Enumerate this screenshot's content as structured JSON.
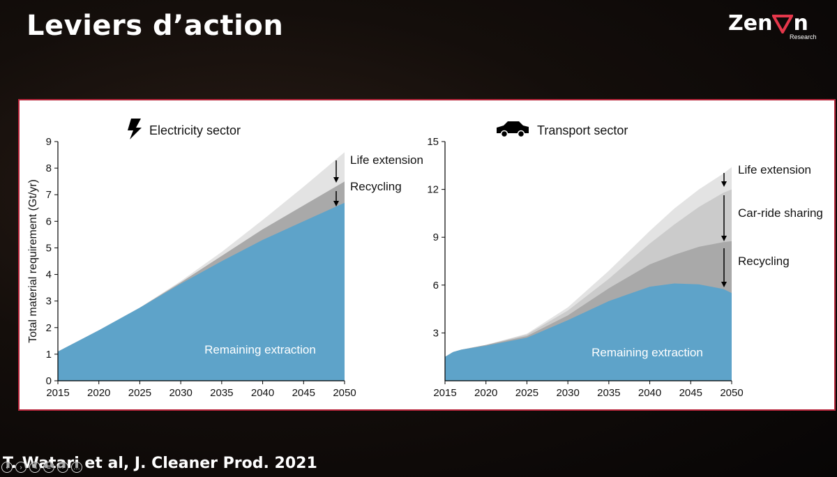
{
  "slide": {
    "title": "Leviers d’action",
    "citation": "T. Watari et al, J. Cleaner Prod. 2021",
    "logo": {
      "word_start": "Zen",
      "word_end": "n",
      "sub": "Research",
      "accent": "#e5374b"
    }
  },
  "nav_icons": [
    "prev-arrow-icon",
    "next-arrow-icon",
    "pen-icon",
    "menu-icon",
    "zoom-icon",
    "more-icon"
  ],
  "colors": {
    "remaining": "#5ea3c9",
    "recycling": "#a9a9a9",
    "car_ride_sharing": "#cbcbcb",
    "life_extension": "#e3e3e3",
    "frame": "#b8263b"
  },
  "chart_data": [
    {
      "type": "area",
      "title": "Electricity sector",
      "icon": "lightning-icon",
      "ylabel": "Total material requirement (Gt/yr)",
      "xlabel": "",
      "x": [
        2015,
        2020,
        2025,
        2030,
        2035,
        2040,
        2045,
        2050
      ],
      "xlim": [
        2015,
        2050
      ],
      "ylim": [
        0,
        9
      ],
      "yticks": [
        0,
        1,
        2,
        3,
        4,
        5,
        6,
        7,
        8,
        9
      ],
      "series": [
        {
          "name": "Remaining extraction",
          "values": [
            1.1,
            1.9,
            2.75,
            3.65,
            4.5,
            5.3,
            6.0,
            6.7
          ]
        },
        {
          "name": "Recycling",
          "values": [
            1.1,
            1.9,
            2.75,
            3.7,
            4.7,
            5.7,
            6.6,
            7.5
          ]
        },
        {
          "name": "Life extension",
          "values": [
            1.1,
            1.9,
            2.75,
            3.75,
            4.85,
            6.05,
            7.3,
            8.6
          ]
        }
      ],
      "annotations": [
        "Life extension",
        "Recycling"
      ],
      "inside_label": "Remaining extraction"
    },
    {
      "type": "area",
      "title": "Transport sector",
      "icon": "car-icon",
      "ylabel": "",
      "xlabel": "",
      "x": [
        2015,
        2016,
        2017,
        2020,
        2025,
        2030,
        2035,
        2040,
        2043,
        2046,
        2049,
        2050
      ],
      "xlim": [
        2015,
        2050
      ],
      "ylim": [
        0,
        15
      ],
      "yticks": [
        3,
        6,
        9,
        12,
        15
      ],
      "series": [
        {
          "name": "Remaining extraction",
          "values": [
            1.5,
            1.8,
            1.95,
            2.2,
            2.7,
            3.8,
            5.0,
            5.9,
            6.1,
            6.05,
            5.75,
            5.5
          ]
        },
        {
          "name": "Recycling",
          "values": [
            1.5,
            1.8,
            1.95,
            2.25,
            2.8,
            4.1,
            5.8,
            7.3,
            7.9,
            8.4,
            8.7,
            8.75
          ]
        },
        {
          "name": "Car-ride sharing",
          "values": [
            1.5,
            1.8,
            1.95,
            2.25,
            2.9,
            4.4,
            6.4,
            8.6,
            9.8,
            10.9,
            11.8,
            12.0
          ]
        },
        {
          "name": "Life extension",
          "values": [
            1.5,
            1.8,
            1.95,
            2.25,
            2.95,
            4.6,
            6.9,
            9.4,
            10.8,
            12.0,
            13.0,
            13.4
          ]
        }
      ],
      "annotations": [
        "Life extension",
        "Car-ride sharing",
        "Recycling"
      ],
      "inside_label": "Remaining extraction"
    }
  ]
}
